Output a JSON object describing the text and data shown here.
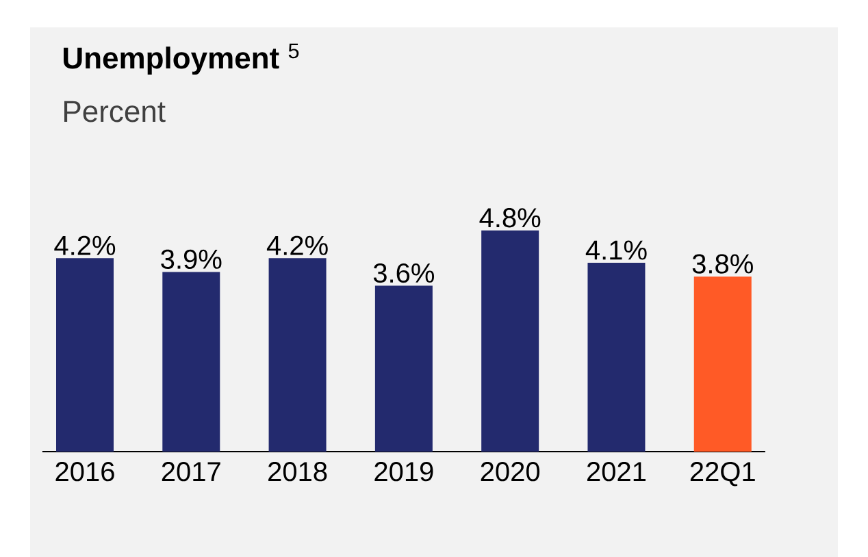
{
  "chart_data": {
    "type": "bar",
    "title": "**Unemployment** $^{5}$",
    "subtitle": "Percent",
    "categories": [
      "2016",
      "2017",
      "2018",
      "2019",
      "2020",
      "2021",
      "22Q1"
    ],
    "values": [
      4.2,
      3.9,
      4.2,
      3.6,
      4.8,
      4.1,
      3.8
    ],
    "value_labels": [
      "4.2%",
      "3.9%",
      "4.2%",
      "3.6%",
      "4.8%",
      "4.1%",
      "3.8%"
    ],
    "colors": [
      "#232a6e",
      "#232a6e",
      "#232a6e",
      "#232a6e",
      "#232a6e",
      "#232a6e",
      "#ff5a26"
    ]
  }
}
